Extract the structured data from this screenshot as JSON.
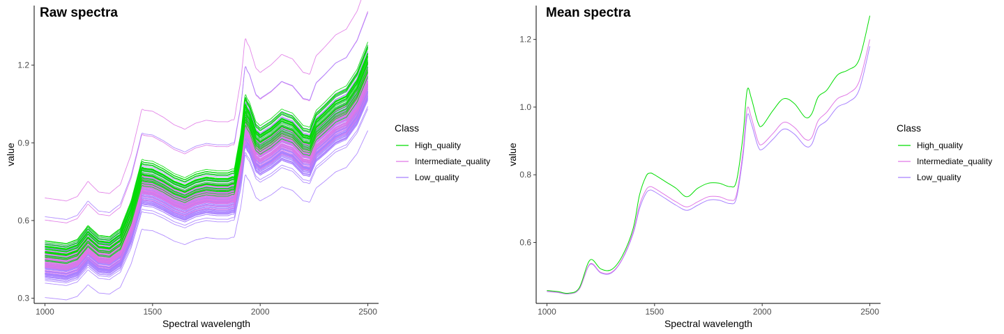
{
  "chart_data": [
    {
      "type": "line",
      "title": "Raw spectra",
      "xlabel": "Spectral wavelength",
      "ylabel": "value",
      "xlim": [
        950,
        2550
      ],
      "ylim": [
        0.28,
        1.43
      ],
      "xticks": [
        1000,
        1500,
        2000,
        2500
      ],
      "yticks": [
        0.3,
        0.6,
        0.9,
        1.2
      ],
      "ytick_labels": [
        "0.3",
        "0.6",
        "0.9",
        "1.2"
      ],
      "grid": false,
      "legend": {
        "title": "Class",
        "placement": "right",
        "entries": [
          {
            "name": "High_quality",
            "color": "#00dd00"
          },
          {
            "name": "Intermediate_quality",
            "color": "#e077e6"
          },
          {
            "name": "Low_quality",
            "color": "#a880ff"
          }
        ]
      },
      "series_groups": [
        {
          "class": "Low_quality",
          "color": "#a880ff",
          "count": 90,
          "offset_range": [
            -0.115,
            0.075
          ]
        },
        {
          "class": "Intermediate_quality",
          "color": "#e077e6",
          "count": 35,
          "offset_range": [
            -0.07,
            0.06
          ]
        },
        {
          "class": "High_quality",
          "color": "#00dd00",
          "count": 28,
          "offset_range": [
            -0.02,
            0.09
          ]
        },
        {
          "class": "Intermediate_quality",
          "color": "#e077e6",
          "count": 1,
          "offset_range": [
            0.16,
            0.16
          ]
        },
        {
          "class": "Intermediate_quality",
          "color": "#e077e6",
          "count": 1,
          "offset_range": [
            0.27,
            0.27
          ]
        },
        {
          "class": "Low_quality",
          "color": "#a880ff",
          "count": 1,
          "offset_range": [
            0.2,
            0.2
          ]
        },
        {
          "class": "Low_quality",
          "color": "#a880ff",
          "count": 1,
          "offset_range": [
            -0.17,
            -0.17
          ]
        }
      ],
      "base_shape": {
        "x": [
          1000,
          1050,
          1100,
          1150,
          1200,
          1250,
          1300,
          1350,
          1400,
          1450,
          1500,
          1550,
          1600,
          1650,
          1700,
          1750,
          1800,
          1850,
          1880,
          1910,
          1930,
          1950,
          1980,
          2000,
          2050,
          2100,
          2150,
          2200,
          2230,
          2260,
          2300,
          2350,
          2400,
          2450,
          2500
        ],
        "y": [
          0.455,
          0.45,
          0.445,
          0.46,
          0.51,
          0.475,
          0.47,
          0.5,
          0.6,
          0.75,
          0.745,
          0.725,
          0.7,
          0.685,
          0.705,
          0.715,
          0.71,
          0.71,
          0.72,
          0.85,
          0.985,
          0.96,
          0.89,
          0.875,
          0.9,
          0.935,
          0.92,
          0.875,
          0.87,
          0.93,
          0.96,
          1.0,
          1.02,
          1.08,
          1.18
        ]
      }
    },
    {
      "type": "line",
      "title": "Mean spectra",
      "xlabel": "Spectral wavelength",
      "ylabel": "value",
      "xlim": [
        950,
        2550
      ],
      "ylim": [
        0.42,
        1.3
      ],
      "xticks": [
        1000,
        1500,
        2000,
        2500
      ],
      "yticks": [
        0.6,
        0.8,
        1.0,
        1.2
      ],
      "ytick_labels": [
        "0.6",
        "0.8",
        "1.0",
        "1.2"
      ],
      "grid": false,
      "legend": {
        "title": "Class",
        "placement": "right",
        "entries": [
          {
            "name": "High_quality",
            "color": "#00dd00"
          },
          {
            "name": "Intermediate_quality",
            "color": "#e077e6"
          },
          {
            "name": "Low_quality",
            "color": "#a880ff"
          }
        ]
      },
      "x": [
        1000,
        1050,
        1100,
        1150,
        1200,
        1250,
        1300,
        1350,
        1400,
        1430,
        1460,
        1480,
        1500,
        1550,
        1600,
        1650,
        1700,
        1750,
        1800,
        1850,
        1880,
        1910,
        1930,
        1950,
        1980,
        2000,
        2050,
        2100,
        2150,
        2200,
        2230,
        2260,
        2300,
        2350,
        2400,
        2450,
        2500
      ],
      "series": [
        {
          "name": "Low_quality",
          "color": "#a880ff",
          "values": [
            0.455,
            0.452,
            0.448,
            0.462,
            0.535,
            0.51,
            0.51,
            0.55,
            0.625,
            0.7,
            0.745,
            0.755,
            0.75,
            0.73,
            0.71,
            0.695,
            0.71,
            0.725,
            0.725,
            0.715,
            0.73,
            0.85,
            0.975,
            0.95,
            0.885,
            0.875,
            0.905,
            0.935,
            0.92,
            0.885,
            0.89,
            0.94,
            0.96,
            1.0,
            1.015,
            1.05,
            1.18
          ]
        },
        {
          "name": "Intermediate_quality",
          "color": "#e077e6",
          "values": [
            0.456,
            0.453,
            0.449,
            0.463,
            0.537,
            0.512,
            0.512,
            0.552,
            0.63,
            0.71,
            0.755,
            0.765,
            0.76,
            0.74,
            0.72,
            0.705,
            0.72,
            0.735,
            0.735,
            0.725,
            0.74,
            0.865,
            0.995,
            0.968,
            0.9,
            0.89,
            0.922,
            0.955,
            0.94,
            0.905,
            0.91,
            0.96,
            0.985,
            1.025,
            1.04,
            1.075,
            1.2
          ]
        },
        {
          "name": "High_quality",
          "color": "#00dd00",
          "values": [
            0.458,
            0.455,
            0.45,
            0.466,
            0.548,
            0.522,
            0.52,
            0.56,
            0.64,
            0.74,
            0.795,
            0.805,
            0.8,
            0.78,
            0.76,
            0.735,
            0.76,
            0.775,
            0.775,
            0.765,
            0.78,
            0.91,
            1.05,
            1.025,
            0.955,
            0.945,
            0.99,
            1.025,
            1.01,
            0.97,
            0.98,
            1.03,
            1.05,
            1.095,
            1.11,
            1.14,
            1.27
          ]
        }
      ]
    }
  ]
}
